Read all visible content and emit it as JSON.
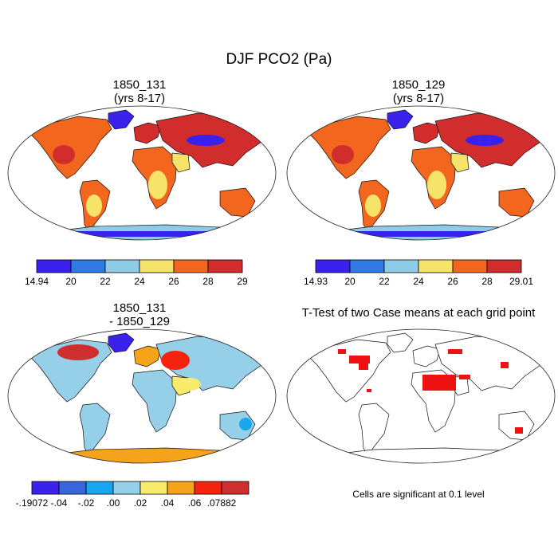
{
  "title": "DJF PCO2 (Pa)",
  "chart_data": [
    {
      "type": "map",
      "panel": "top-left",
      "title_line1": "1850_131",
      "title_line2": "(yrs 8-17)",
      "colorbar": {
        "labels": [
          "14.94",
          "20",
          "22",
          "24",
          "26",
          "28",
          "29"
        ],
        "colors": [
          "#3a22ec",
          "#2f7ae4",
          "#8ecbe6",
          "#f6e46a",
          "#f2661e",
          "#d22d2d"
        ]
      }
    },
    {
      "type": "map",
      "panel": "top-right",
      "title_line1": "1850_129",
      "title_line2": "(yrs 8-17)",
      "colorbar": {
        "labels": [
          "14.93",
          "20",
          "22",
          "24",
          "26",
          "28",
          "29.01"
        ],
        "colors": [
          "#3a22ec",
          "#2f7ae4",
          "#8ecbe6",
          "#f6e46a",
          "#f2661e",
          "#d22d2d"
        ]
      }
    },
    {
      "type": "map",
      "panel": "bottom-left",
      "title_line1": "1850_131",
      "title_line2": "- 1850_129",
      "colorbar": {
        "labels": [
          "-.19072",
          "-.04",
          "-.02",
          ".00",
          ".02",
          ".04",
          ".06",
          ".07882"
        ],
        "colors": [
          "#3a22ec",
          "#3a64dc",
          "#1aa6ee",
          "#96cfe8",
          "#f8ea6a",
          "#f5a31a",
          "#f5220e",
          "#cf2e2e"
        ]
      }
    },
    {
      "type": "map",
      "panel": "bottom-right",
      "title_line1": "T-Test of two Case means at each grid point",
      "note": "Cells are significant at 0.1 level",
      "significance_color": "#ee1111"
    }
  ]
}
